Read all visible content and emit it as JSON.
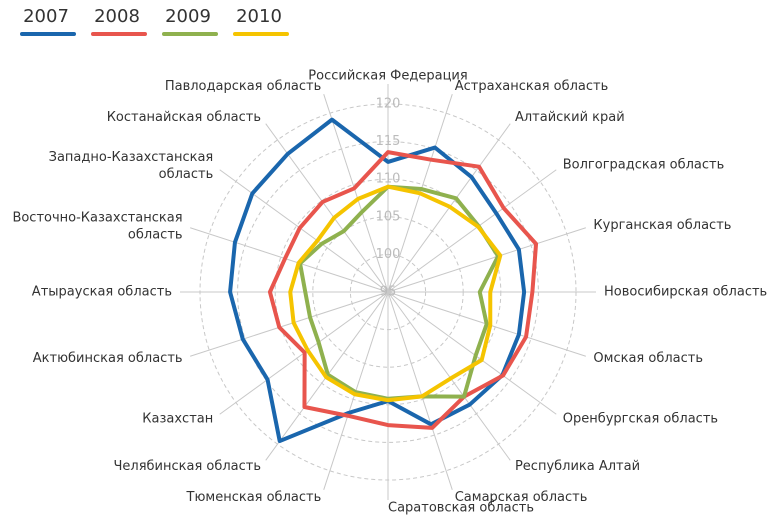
{
  "chart_data": {
    "type": "radar",
    "categories": [
      "Российская Федерация",
      "Астраханская область",
      "Алтайский край",
      "Волгоградская область",
      "Курганская область",
      "Новосибирская область",
      "Омская область",
      "Оренбургская область",
      "Республика Алтай",
      "Самарская область",
      "Саратовская область",
      "Тюменская область",
      "Челябинская область",
      "Казахстан",
      "Актюбинская область",
      "Атырауская область",
      "Восточно-Казахстанская\nобласть",
      "Западно-Казахстанская\nобласть",
      "Костанайская область",
      "Павлодарская область"
    ],
    "series": [
      {
        "name": "2007",
        "color": "#1a66ad",
        "values": [
          112.3,
          115.2,
          113.9,
          112.8,
          113.3,
          113.1,
          113.3,
          113.8,
          113.5,
          113.5,
          109.5,
          111.9,
          119.5,
          114.8,
          115.3,
          116.0,
          116.4,
          117.3,
          117.7,
          119.1
        ]
      },
      {
        "name": "2008",
        "color": "#e8554d",
        "values": [
          113.6,
          113.5,
          115.6,
          114.0,
          115.7,
          114.2,
          114.3,
          113.9,
          112.2,
          114.0,
          112.7,
          112.3,
          113.9,
          108.7,
          110.2,
          110.7,
          109.4,
          109.5,
          109.8,
          109.5
        ]
      },
      {
        "name": "2009",
        "color": "#8fb14e",
        "values": [
          109.0,
          109.4,
          110.4,
          109.9,
          110.4,
          107.2,
          108.8,
          109.4,
          112.2,
          109.6,
          109.2,
          109.0,
          108.6,
          106.4,
          105.9,
          106.0,
          107.3,
          105.9,
          105.0,
          106.2
        ]
      },
      {
        "name": "2010",
        "color": "#f5c400",
        "values": [
          109.0,
          108.8,
          109.0,
          109.8,
          110.7,
          108.6,
          109.3,
          110.4,
          109.2,
          109.6,
          109.4,
          109.3,
          109.0,
          108.2,
          108.2,
          108.0,
          107.5,
          106.6,
          107.2,
          108.0
        ]
      }
    ],
    "rlim": [
      95,
      120
    ],
    "rticks": [
      95,
      100,
      105,
      110,
      115,
      120
    ],
    "grid": true,
    "legend": "top-left"
  }
}
